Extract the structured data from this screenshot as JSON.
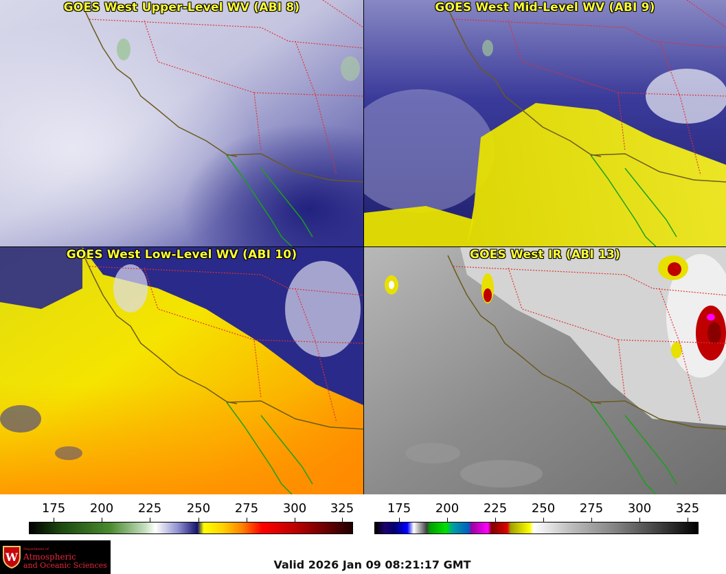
{
  "panels": [
    {
      "title": "GOES West Upper-Level WV (ABI 8)"
    },
    {
      "title": "GOES West Mid-Level WV (ABI 9)"
    },
    {
      "title": "GOES West Low-Level WV (ABI 10)"
    },
    {
      "title": "GOES West IR (ABI 13)"
    }
  ],
  "colorbars": [
    {
      "name": "water-vapor",
      "ticks": [
        "175",
        "200",
        "225",
        "250",
        "275",
        "300",
        "325"
      ]
    },
    {
      "name": "infrared",
      "ticks": [
        "175",
        "200",
        "225",
        "250",
        "275",
        "300",
        "325"
      ]
    }
  ],
  "logo": {
    "line1": "Department of",
    "line2": "Atmospheric",
    "line3": "and Oceanic Sciences"
  },
  "valid_time": "Valid 2026 Jan 09 08:21:17 GMT",
  "colors": {
    "title_text": "#ffff33",
    "state_borders": "#e03030",
    "us_coast": "#6b5a1e",
    "mexico_coast": "#1aa01a"
  }
}
